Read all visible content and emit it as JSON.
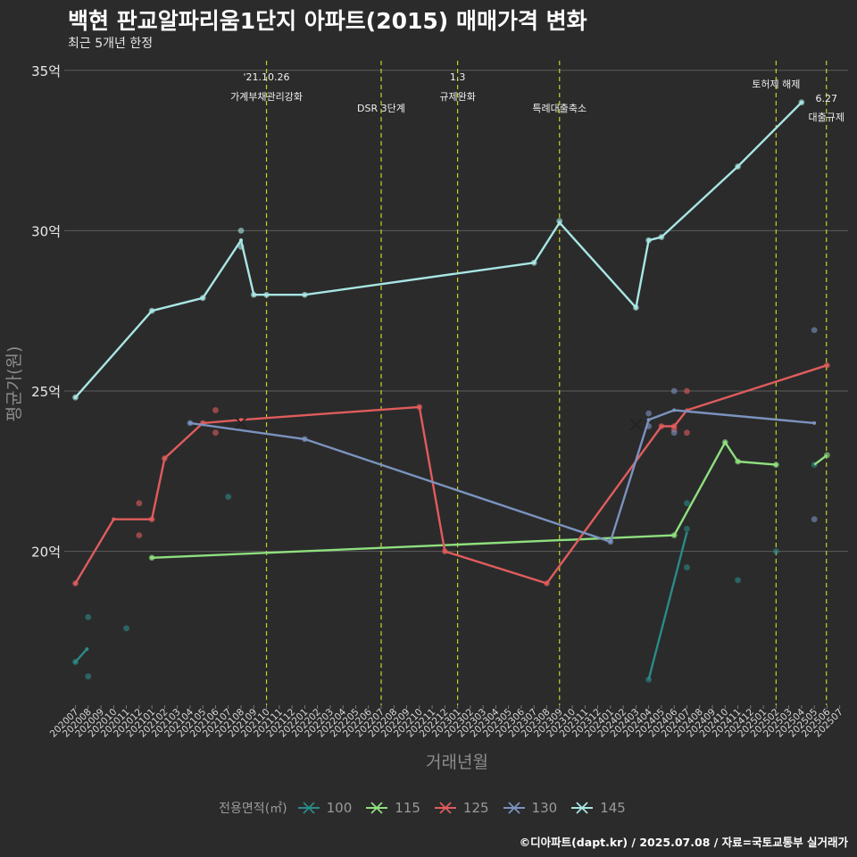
{
  "title": "백현 판교알파리움1단지 아파트(2015) 매매가격 변화",
  "subtitle": "최근 5개년 한정",
  "caption": "©디아파트(dapt.kr) / 2025.07.08 / 자료=국토교통부 실거래가",
  "chart_data": {
    "type": "line",
    "xlabel": "거래년월",
    "ylabel": "평균가(원)",
    "ylim": [
      15.2,
      35.3
    ],
    "y_ticks": [
      {
        "v": 20,
        "label": "20억"
      },
      {
        "v": 25,
        "label": "25억"
      },
      {
        "v": 30,
        "label": "30억"
      },
      {
        "v": 35,
        "label": "35억"
      }
    ],
    "x_ticks": [
      "202007",
      "202008",
      "202009",
      "202010",
      "202011",
      "202012",
      "202101",
      "202102",
      "202103",
      "202104",
      "202105",
      "202106",
      "202107",
      "202108",
      "202109",
      "202110",
      "202111",
      "202112",
      "202201",
      "202202",
      "202203",
      "202204",
      "202205",
      "202206",
      "202207",
      "202208",
      "202209",
      "202210",
      "202211",
      "202212",
      "202301",
      "202302",
      "202303",
      "202304",
      "202305",
      "202306",
      "202307",
      "202308",
      "202309",
      "202310",
      "202311",
      "202312",
      "202401",
      "202402",
      "202403",
      "202404",
      "202405",
      "202406",
      "202407",
      "202408",
      "202409",
      "202410",
      "202411",
      "202412",
      "202501",
      "202502",
      "202503",
      "202504",
      "202505",
      "202506",
      "202507"
    ],
    "legend_title": "전용면적(㎡)",
    "events": [
      {
        "x": 15.0,
        "line1": "'21.10.26",
        "line2": "가계부채관리강화",
        "row": 1
      },
      {
        "x": 24.0,
        "line1": "",
        "line2": "DSR 3단계",
        "row": 2
      },
      {
        "x": 30.0,
        "line1": "1.3",
        "line2": "규제완화",
        "row": 1
      },
      {
        "x": 38.0,
        "line1": "",
        "line2": "특례대출축소",
        "row": 2
      },
      {
        "x": 55.0,
        "line1": "",
        "line2": "토허제 해제",
        "row": 0
      },
      {
        "x": 58.95,
        "line1": "6.27",
        "line2": "대출규제",
        "row": 3
      }
    ],
    "series": [
      {
        "name": "100",
        "color": "#2b8a87",
        "line": [
          [
            0,
            16.55
          ],
          [
            0.9,
            16.95
          ]
        ],
        "points": [
          [
            0,
            16.55
          ],
          [
            1,
            17.95
          ],
          [
            1,
            16.1
          ],
          [
            4,
            17.6
          ],
          [
            12,
            21.7
          ],
          [
            45,
            16.0
          ],
          [
            48,
            20.7
          ],
          [
            48,
            19.5
          ],
          [
            48,
            21.5
          ],
          [
            52,
            19.1
          ],
          [
            55,
            20.0
          ],
          [
            58,
            22.7
          ]
        ],
        "line2": [
          [
            45,
            16.0
          ],
          [
            48,
            20.6
          ]
        ]
      },
      {
        "name": "115",
        "color": "#8fe07e",
        "line": [
          [
            6,
            19.8
          ],
          [
            47,
            20.5
          ],
          [
            51,
            23.4
          ],
          [
            52,
            22.8
          ],
          [
            55,
            22.7
          ]
        ],
        "points": [
          [
            6,
            19.8
          ],
          [
            47,
            20.5
          ],
          [
            51,
            23.4
          ],
          [
            52,
            22.8
          ],
          [
            55,
            22.7
          ],
          [
            59,
            23.0
          ]
        ],
        "line2": [
          [
            58,
            22.7
          ],
          [
            59,
            23.0
          ]
        ]
      },
      {
        "name": "125",
        "color": "#e05c5c",
        "line": [
          [
            0,
            19.0
          ],
          [
            3,
            21.0
          ],
          [
            6,
            21.0
          ],
          [
            7,
            22.9
          ],
          [
            10,
            24.0
          ],
          [
            13,
            24.1
          ],
          [
            27,
            24.5
          ],
          [
            29,
            20.0
          ],
          [
            37,
            19.0
          ],
          [
            46,
            23.9
          ],
          [
            47,
            23.9
          ],
          [
            48,
            24.4
          ],
          [
            59,
            25.8
          ]
        ],
        "points": [
          [
            0,
            19.0
          ],
          [
            5,
            21.5
          ],
          [
            5,
            20.5
          ],
          [
            6,
            21.0
          ],
          [
            7,
            22.9
          ],
          [
            10,
            24.0
          ],
          [
            11,
            24.4
          ],
          [
            11,
            23.7
          ],
          [
            27,
            24.5
          ],
          [
            29,
            20.0
          ],
          [
            37,
            19.0
          ],
          [
            46,
            23.9
          ],
          [
            47,
            23.9
          ],
          [
            47,
            23.8
          ],
          [
            48,
            25.0
          ],
          [
            48,
            23.7
          ],
          [
            59,
            25.8
          ]
        ],
        "cross": [
          [
            44,
            23.95
          ]
        ]
      },
      {
        "name": "130",
        "color": "#7b93bf",
        "line": [
          [
            9,
            24.0
          ],
          [
            18,
            23.5
          ],
          [
            42,
            20.3
          ],
          [
            45,
            24.1
          ],
          [
            47,
            24.4
          ],
          [
            58,
            24.0
          ]
        ],
        "points": [
          [
            9,
            24.0
          ],
          [
            18,
            23.5
          ],
          [
            42,
            20.3
          ],
          [
            45,
            24.3
          ],
          [
            45,
            23.9
          ],
          [
            47,
            25.0
          ],
          [
            47,
            23.7
          ],
          [
            58,
            26.9
          ],
          [
            58,
            21.0
          ]
        ],
        "cross": [
          [
            13,
            24.0
          ]
        ]
      },
      {
        "name": "145",
        "color": "#a8e6e3",
        "line": [
          [
            0,
            24.8
          ],
          [
            6,
            27.5
          ],
          [
            10,
            27.9
          ],
          [
            13,
            29.7
          ],
          [
            14,
            28.0
          ],
          [
            15,
            28.0
          ],
          [
            18,
            28.0
          ],
          [
            36,
            29.0
          ],
          [
            38,
            30.25
          ],
          [
            44,
            27.6
          ],
          [
            45,
            29.7
          ],
          [
            46,
            29.8
          ],
          [
            52,
            32.0
          ],
          [
            57,
            34.0
          ]
        ],
        "points": [
          [
            0,
            24.8
          ],
          [
            6,
            27.5
          ],
          [
            10,
            27.9
          ],
          [
            13,
            30.0
          ],
          [
            13,
            29.5
          ],
          [
            14,
            28.0
          ],
          [
            15,
            28.0
          ],
          [
            18,
            28.0
          ],
          [
            36,
            29.0
          ],
          [
            38,
            30.3
          ],
          [
            44,
            27.6
          ],
          [
            45,
            29.7
          ],
          [
            46,
            29.8
          ],
          [
            52,
            32.0
          ],
          [
            57,
            34.0
          ]
        ]
      }
    ]
  }
}
